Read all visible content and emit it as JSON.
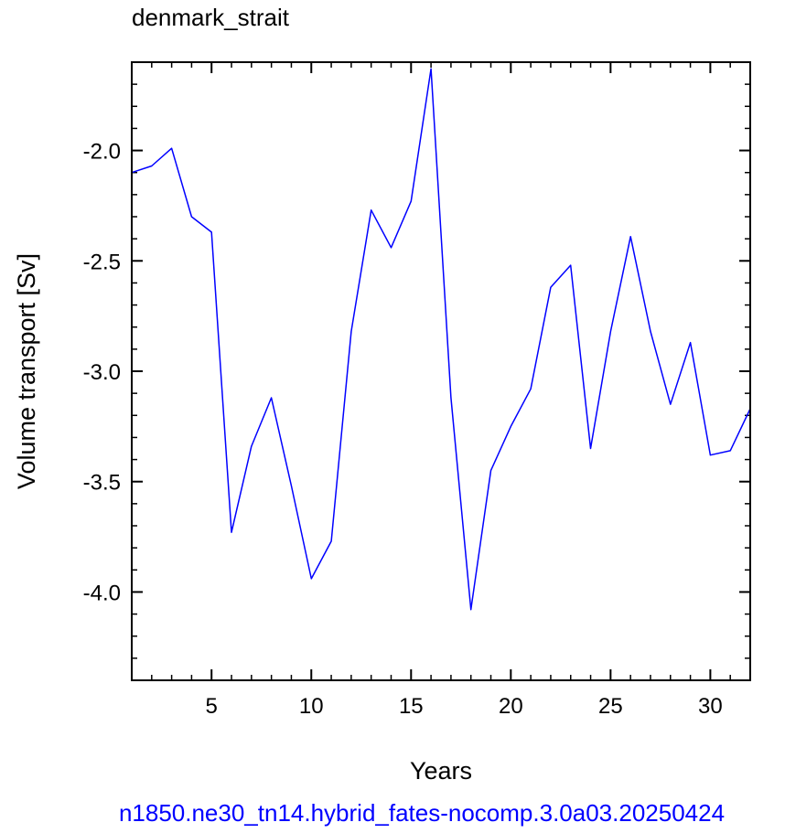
{
  "chart_data": {
    "type": "line",
    "title": "denmark_strait",
    "xlabel": "Years",
    "ylabel": "Volume transport [Sv]",
    "xlim": [
      1,
      32
    ],
    "ylim": [
      -4.4,
      -1.6
    ],
    "xticks": [
      5,
      10,
      15,
      20,
      25,
      30
    ],
    "yticks": [
      -2.0,
      -2.5,
      -3.0,
      -3.5,
      -4.0
    ],
    "ytick_labels": [
      "-2.0",
      "-2.5",
      "-3.0",
      "-3.5",
      "-4.0"
    ],
    "grid": false,
    "series": [
      {
        "color": "#0000ff",
        "x": [
          1,
          2,
          3,
          4,
          5,
          6,
          7,
          8,
          9,
          10,
          11,
          12,
          13,
          14,
          15,
          16,
          17,
          18,
          19,
          20,
          21,
          22,
          23,
          24,
          25,
          26,
          27,
          28,
          29,
          30,
          31,
          32
        ],
        "values": [
          -2.1,
          -2.07,
          -1.99,
          -2.3,
          -2.37,
          -3.73,
          -3.34,
          -3.12,
          -3.52,
          -3.94,
          -3.77,
          -2.82,
          -2.27,
          -2.44,
          -2.23,
          -1.63,
          -3.12,
          -4.08,
          -3.45,
          -3.25,
          -3.08,
          -2.62,
          -2.52,
          -3.35,
          -2.82,
          -2.39,
          -2.82,
          -3.15,
          -2.87,
          -3.38,
          -3.36,
          -3.17
        ]
      }
    ]
  },
  "footer": {
    "case_name": "n1850.ne30_tn14.hybrid_fates-nocomp.3.0a03.20250424",
    "color": "#0000ff"
  }
}
